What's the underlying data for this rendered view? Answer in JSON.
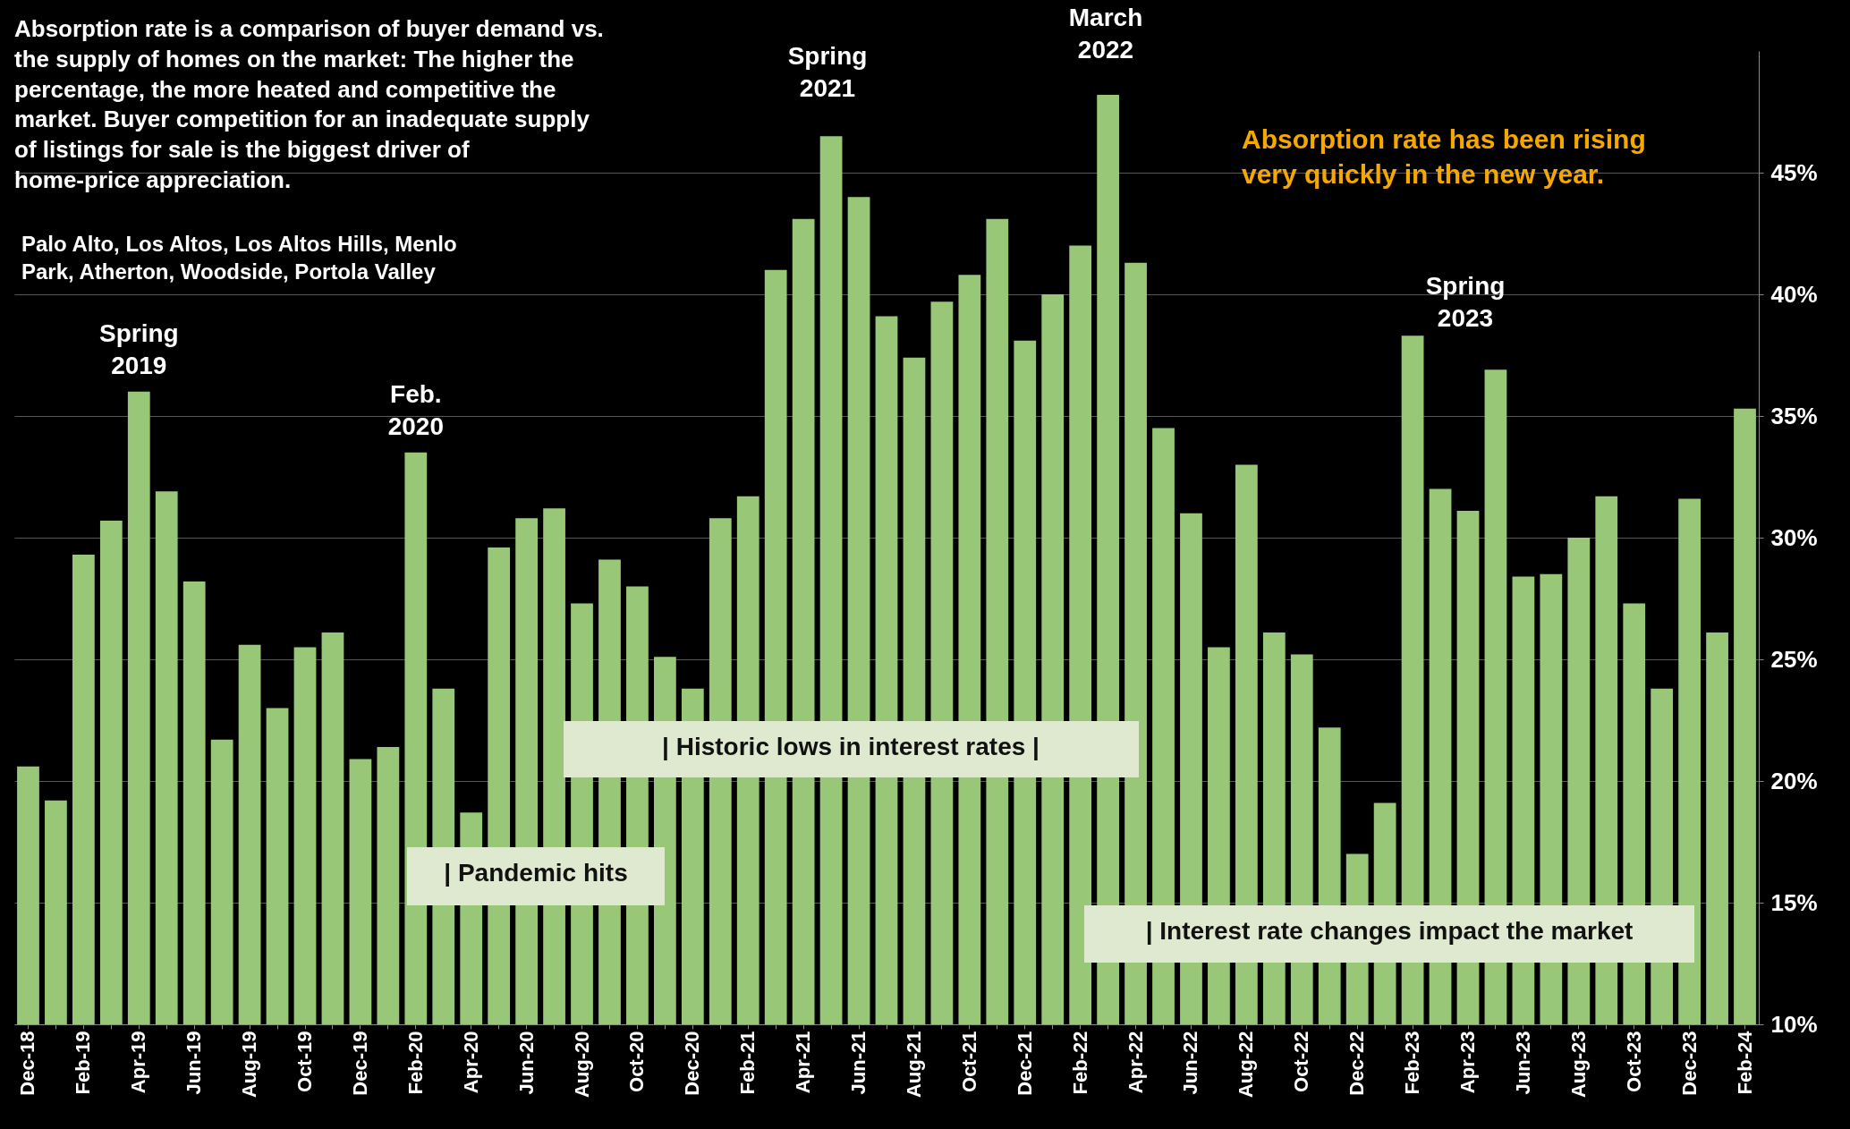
{
  "chart_data": {
    "type": "bar",
    "categories": [
      "Dec-18",
      null,
      "Feb-19",
      null,
      "Apr-19",
      null,
      "Jun-19",
      null,
      "Aug-19",
      null,
      "Oct-19",
      null,
      "Dec-19",
      null,
      "Feb-20",
      null,
      "Apr-20",
      null,
      "Jun-20",
      null,
      "Aug-20",
      null,
      "Oct-20",
      null,
      "Dec-20",
      null,
      "Feb-21",
      null,
      "Apr-21",
      null,
      "Jun-21",
      null,
      "Aug-21",
      null,
      "Oct-21",
      null,
      "Dec-21",
      null,
      "Feb-22",
      null,
      "Apr-22",
      null,
      "Jun-22",
      null,
      "Aug-22",
      null,
      "Oct-22",
      null,
      "Dec-22",
      null,
      "Feb-23",
      null,
      "Apr-23",
      null,
      "Jun-23",
      null,
      "Aug-23",
      null,
      "Oct-23",
      null,
      "Dec-23",
      null,
      "Feb-24"
    ],
    "values": [
      20.6,
      19.2,
      29.3,
      30.7,
      36.0,
      31.9,
      28.2,
      21.7,
      25.6,
      23.0,
      25.5,
      26.1,
      20.9,
      21.4,
      33.5,
      23.8,
      18.7,
      29.6,
      30.8,
      31.2,
      27.3,
      29.1,
      28.0,
      25.1,
      23.8,
      30.8,
      31.7,
      41.0,
      43.1,
      46.5,
      44.0,
      39.1,
      37.4,
      39.7,
      40.8,
      43.1,
      38.1,
      40.0,
      42.0,
      48.2,
      41.3,
      34.5,
      31.0,
      25.5,
      33.0,
      26.1,
      25.2,
      22.2,
      17.0,
      19.1,
      38.3,
      32.0,
      31.1,
      36.9,
      28.4,
      28.5,
      30.0,
      31.7,
      27.3,
      23.8,
      31.6,
      26.1,
      35.3
    ],
    "color": "#97c777",
    "ylim": [
      10,
      50
    ],
    "yticks": [
      {
        "value": 10,
        "label": "10%"
      },
      {
        "value": 15,
        "label": "15%"
      },
      {
        "value": 20,
        "label": "20%"
      },
      {
        "value": 25,
        "label": "25%"
      },
      {
        "value": 30,
        "label": "30%"
      },
      {
        "value": 35,
        "label": "35%"
      },
      {
        "value": 40,
        "label": "40%"
      },
      {
        "value": 45,
        "label": "45%"
      }
    ],
    "grid": "y",
    "annotations": [
      "Absorption rate is a comparison of buyer demand vs. the supply of homes on the market: The higher the percentage, the more heated and competitive the market. Buyer competition for an inadequate supply of listings for sale is the biggest driver of home-price appreciation.",
      "Absorption rate has been rising very quickly in the new year.",
      {
        "text": "Spring 2019",
        "x": "Apr-19",
        "y": 36.0
      },
      {
        "text": "Feb. 2020",
        "x": "Feb-20",
        "y": 33.5
      },
      "Spring 2021",
      "March 2022",
      "Spring 2023",
      "|     Historic lows in interest rates     |",
      "| Pandemic hits",
      "| Interest rate changes impact the market",
      "Palo Alto, Los Altos, Los Altos Hills, Menlo Park, Atherton, Woodside, Portola Valley"
    ]
  }
}
